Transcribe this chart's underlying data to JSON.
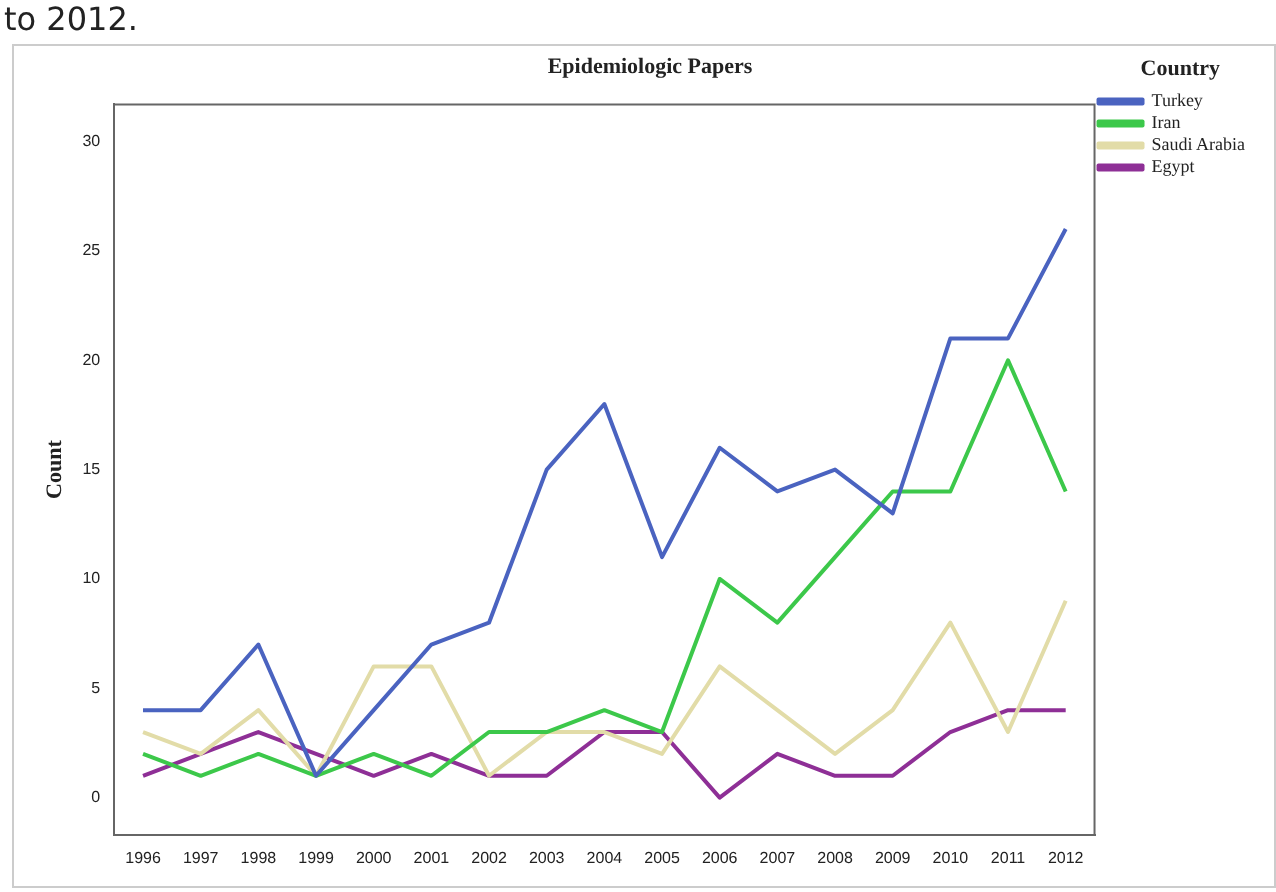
{
  "chart_data": {
    "type": "line",
    "title": "Epidemiologic Papers",
    "ylabel": "Count",
    "legend_title": "Country",
    "annotations": [
      "to 2012."
    ],
    "categories": [
      "1996",
      "1997",
      "1998",
      "1999",
      "2000",
      "2001",
      "2002",
      "2003",
      "2004",
      "2005",
      "2006",
      "2007",
      "2008",
      "2009",
      "2010",
      "2011",
      "2012"
    ],
    "series": [
      {
        "name": "Turkey",
        "color": "#4a63c0",
        "values": [
          4,
          4,
          7,
          1,
          4,
          7,
          8,
          15,
          18,
          11,
          16,
          14,
          15,
          13,
          21,
          21,
          26
        ]
      },
      {
        "name": "Iran",
        "color": "#3cc84a",
        "values": [
          2,
          1,
          2,
          1,
          2,
          1,
          3,
          3,
          4,
          3,
          10,
          8,
          11,
          14,
          14,
          20,
          14
        ]
      },
      {
        "name": "Saudi Arabia",
        "color": "#e2dca8",
        "values": [
          3,
          2,
          4,
          1,
          6,
          6,
          1,
          3,
          3,
          2,
          6,
          4,
          2,
          4,
          8,
          3,
          9
        ]
      },
      {
        "name": "Egypt",
        "color": "#8e2f96",
        "values": [
          1,
          2,
          3,
          2,
          1,
          2,
          1,
          1,
          3,
          3,
          0,
          2,
          1,
          1,
          3,
          4,
          4
        ]
      }
    ],
    "ylim": [
      -1.7,
      31.7
    ],
    "yticks": [
      0,
      5,
      10,
      15,
      20,
      25,
      30
    ],
    "grid": false,
    "legend": "top right",
    "marker": "none",
    "line_style": "solid"
  }
}
